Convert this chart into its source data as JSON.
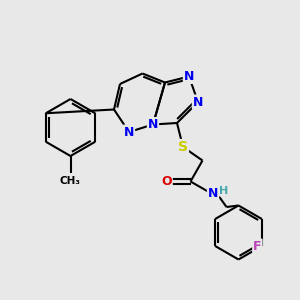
{
  "background_color": "#e8e8e8",
  "atom_colors": {
    "C": "#000000",
    "N": "#0000ee",
    "S": "#cccc00",
    "O": "#dd0000",
    "F": "#bb44bb",
    "H": "#44aaaa"
  },
  "figsize": [
    3.0,
    3.0
  ],
  "dpi": 100
}
